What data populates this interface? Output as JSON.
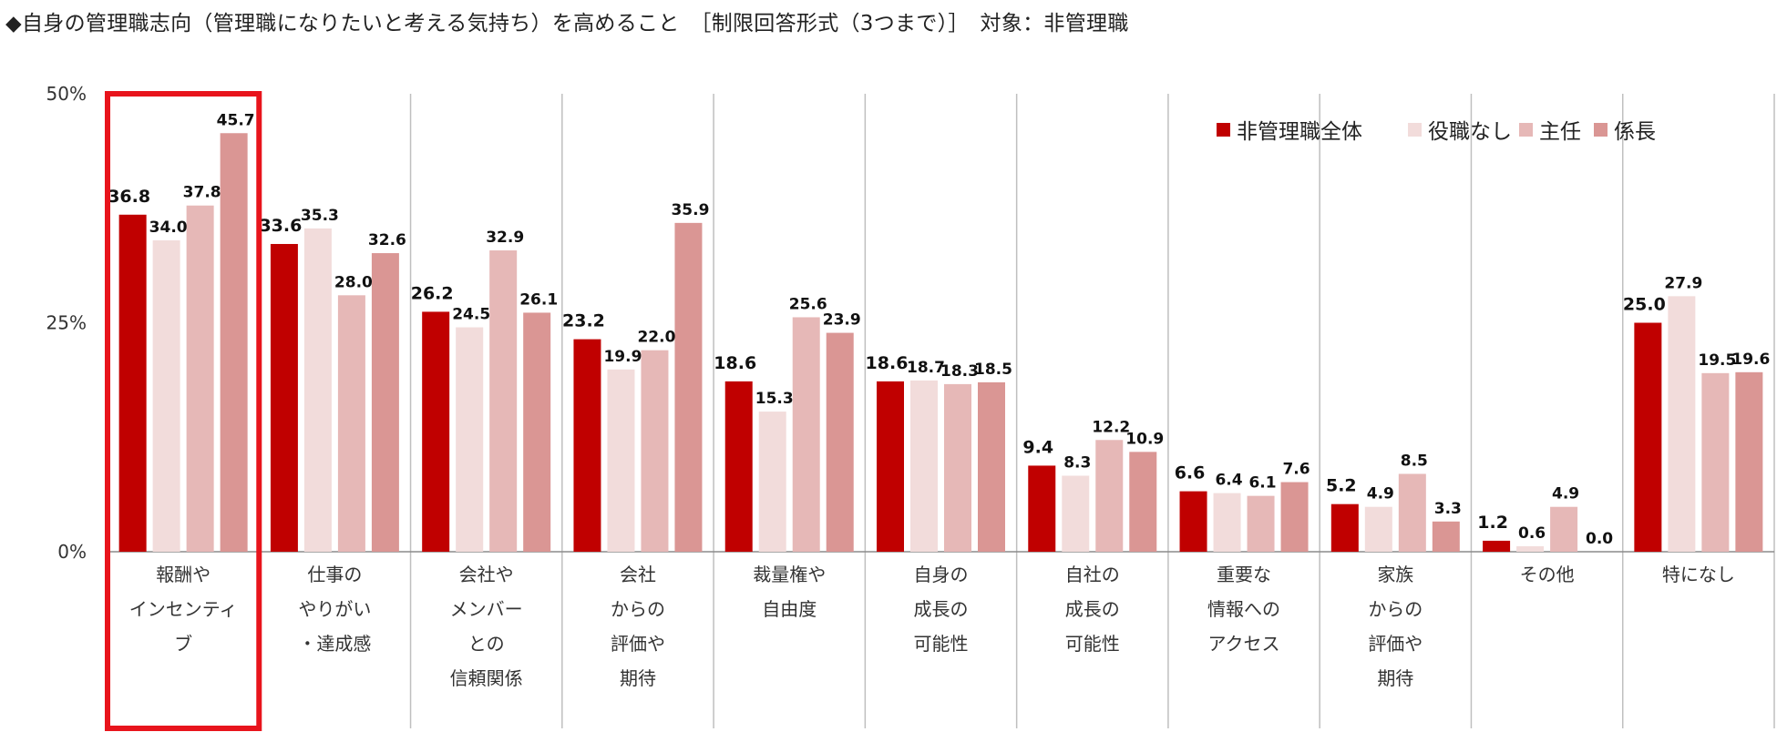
{
  "title": "◆自身の管理職志向（管理職になりたいと考える気持ち）を高めること　［制限回答形式（3つまで）］　対象：非管理職",
  "chart_data": {
    "type": "bar",
    "title": "自身の管理職志向（管理職になりたいと考える気持ち）を高めること",
    "ylim": [
      0,
      50
    ],
    "yticks": [
      "0%",
      "25%",
      "50%"
    ],
    "ytick_values": [
      0,
      25,
      50
    ],
    "legend_position": "top-right",
    "highlight_category_index": 0,
    "highlight_color": "#e8141c",
    "categories": [
      [
        "報酬や",
        "インセンティ",
        "ブ"
      ],
      [
        "仕事の",
        "やりがい",
        "・達成感"
      ],
      [
        "会社や",
        "メンバー",
        "との",
        "信頼関係"
      ],
      [
        "会社",
        "からの",
        "評価や",
        "期待"
      ],
      [
        "裁量権や",
        "自由度"
      ],
      [
        "自身の",
        "成長の",
        "可能性"
      ],
      [
        "自社の",
        "成長の",
        "可能性"
      ],
      [
        "重要な",
        "情報への",
        "アクセス"
      ],
      [
        "家族",
        "からの",
        "評価や",
        "期待"
      ],
      [
        "その他"
      ],
      [
        "特になし"
      ]
    ],
    "series": [
      {
        "name": "非管理職全体",
        "color": "#c00000",
        "values": [
          36.8,
          33.6,
          26.2,
          23.2,
          18.6,
          18.6,
          9.4,
          6.6,
          5.2,
          1.2,
          25.0
        ],
        "labels": [
          "36.8",
          "33.6",
          "26.2",
          "23.2",
          "18.6",
          "18.6",
          "9.4",
          "6.6",
          "5.2",
          "1.2",
          "25.0"
        ]
      },
      {
        "name": "役職なし",
        "color": "#f2dcdb",
        "values": [
          34.0,
          35.3,
          24.5,
          19.9,
          15.3,
          18.7,
          8.3,
          6.4,
          4.9,
          0.6,
          27.9
        ],
        "labels": [
          "34.0",
          "35.3",
          "24.5",
          "19.9",
          "15.3",
          "18.7",
          "8.3",
          "6.4",
          "4.9",
          "0.6",
          "27.9"
        ]
      },
      {
        "name": "主任",
        "color": "#e6b8b7",
        "values": [
          37.8,
          28.0,
          32.9,
          22.0,
          25.6,
          18.3,
          12.2,
          6.1,
          8.5,
          4.9,
          19.5
        ],
        "labels": [
          "37.8",
          "28.0",
          "32.9",
          "22.0",
          "25.6",
          "18.3",
          "12.2",
          "6.1",
          "8.5",
          "4.9",
          "19.5"
        ]
      },
      {
        "name": "係長",
        "color": "#da9694",
        "values": [
          45.7,
          32.6,
          26.1,
          35.9,
          23.9,
          18.5,
          10.9,
          7.6,
          3.3,
          0.0,
          19.6
        ],
        "labels": [
          "45.7",
          "32.6",
          "26.1",
          "35.9",
          "23.9",
          "18.5",
          "10.9",
          "7.6",
          "3.3",
          "0.0",
          "19.6"
        ]
      }
    ]
  }
}
